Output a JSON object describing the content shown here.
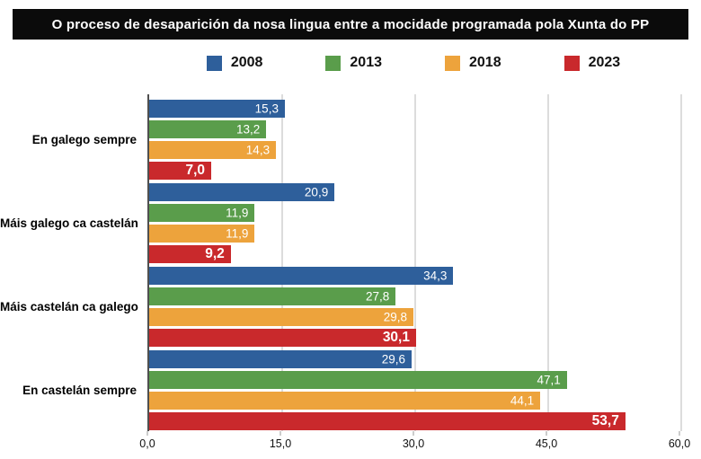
{
  "chart_data": {
    "type": "bar",
    "orientation": "horizontal",
    "title": "O proceso de desaparición da nosa lingua entre a mocidade programada pola Xunta do PP",
    "categories": [
      "En galego sempre",
      "Máis galego ca castelán",
      "Máis castelán ca galego",
      "En castelán sempre"
    ],
    "series": [
      {
        "name": "2008",
        "color": "#2e5f9b",
        "values": [
          15.3,
          20.9,
          34.3,
          29.6
        ],
        "labels": [
          "15,3",
          "20,9",
          "34,3",
          "29,6"
        ],
        "label_bold": false
      },
      {
        "name": "2013",
        "color": "#5a9d4b",
        "values": [
          13.2,
          11.9,
          27.8,
          47.1
        ],
        "labels": [
          "13,2",
          "11,9",
          "27,8",
          "47,1"
        ],
        "label_bold": false
      },
      {
        "name": "2018",
        "color": "#eda33c",
        "values": [
          14.3,
          11.9,
          29.8,
          44.1
        ],
        "labels": [
          "14,3",
          "11,9",
          "29,8",
          "44,1"
        ],
        "label_bold": false
      },
      {
        "name": "2023",
        "color": "#c9292c",
        "values": [
          7.0,
          9.2,
          30.1,
          53.7
        ],
        "labels": [
          "7,0",
          "9,2",
          "30,1",
          "53,7"
        ],
        "label_bold": true
      }
    ],
    "xlim": [
      0,
      60
    ],
    "xticks": [
      {
        "value": 0,
        "label": "0,0"
      },
      {
        "value": 15,
        "label": "15,0"
      },
      {
        "value": 30,
        "label": "30,0"
      },
      {
        "value": 45,
        "label": "45,0"
      },
      {
        "value": 60,
        "label": "60,0"
      }
    ],
    "grid": "vertical",
    "legend_position": "top",
    "colors": {
      "title_bg": "#0b0b0b",
      "title_text": "#ffffff",
      "axis_line": "#4f4f4f",
      "gridline": "#dcdcdc",
      "tick_text": "#111111",
      "bar_label_text": "#ffffff"
    }
  }
}
